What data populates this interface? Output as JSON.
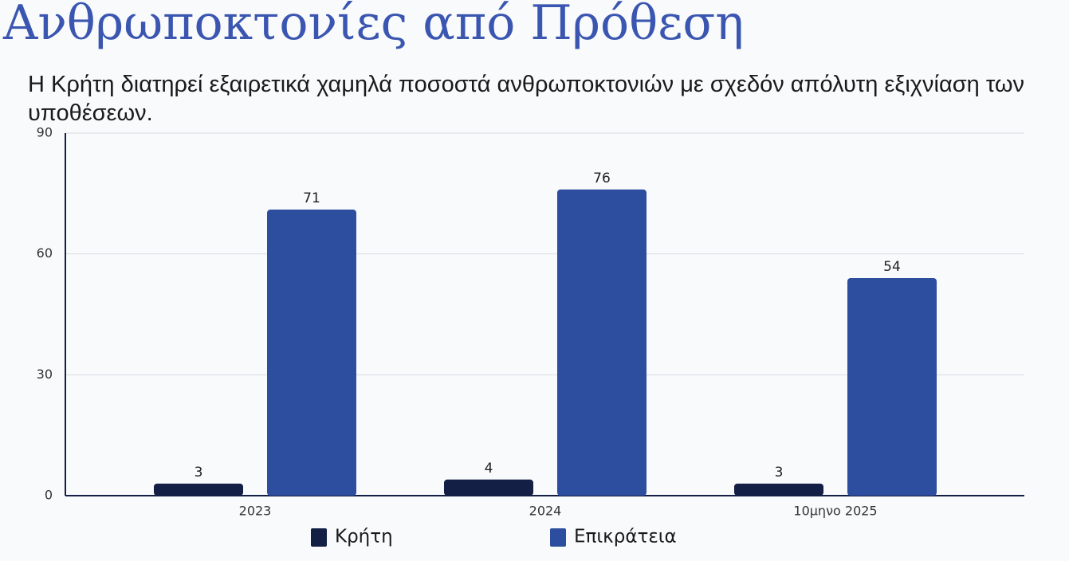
{
  "chart_data": {
    "type": "bar",
    "title": "Ανθρωποκτονίες από Πρόθεση",
    "subtitle": "Η Κρήτη διατηρεί εξαιρετικά χαμηλά ποσοστά ανθρωποκτονιών με σχεδόν απόλυτη εξιχνίαση των υποθέσεων.",
    "categories": [
      "2023",
      "2024",
      "10μηνο 2025"
    ],
    "series": [
      {
        "name": "Κρήτη",
        "color": "#131f45",
        "values": [
          3,
          4,
          3
        ]
      },
      {
        "name": "Επικράτεια",
        "color": "#2d4d9e",
        "values": [
          71,
          76,
          54
        ]
      }
    ],
    "ylim": [
      0,
      90
    ],
    "yticks": [
      0,
      30,
      60,
      90
    ],
    "grid": true,
    "legend": "bottom"
  }
}
